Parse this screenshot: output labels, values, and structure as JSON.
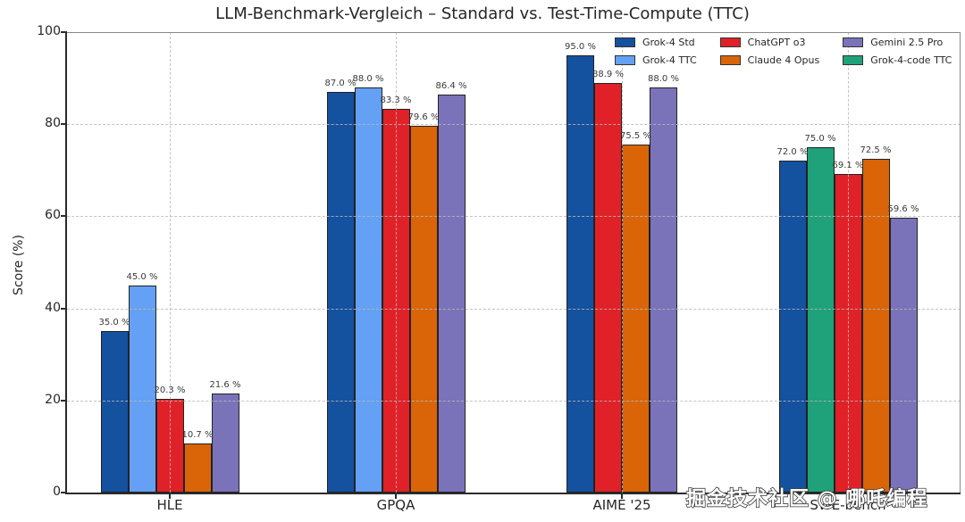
{
  "title": "LLM-Benchmark-Vergleich – Standard vs. Test-Time-Compute (TTC)",
  "ylabel": "Score (%)",
  "watermark": "掘金技术社区 @ 哪吒编程",
  "chart_data": {
    "type": "bar",
    "title": "LLM-Benchmark-Vergleich – Standard vs. Test-Time-Compute (TTC)",
    "xlabel": "",
    "ylabel": "Score (%)",
    "ylim": [
      0,
      100
    ],
    "yticks": [
      0,
      20,
      40,
      60,
      80,
      100
    ],
    "grid": true,
    "grid_style": "dashed",
    "value_label_suffix": " %",
    "bar_edge_color": "#222222",
    "categories": [
      "HLE",
      "GPQA",
      "AIME '25",
      "SWE-bench"
    ],
    "series": [
      {
        "name": "Grok-4 Std",
        "color": "#14519e",
        "values": [
          35.0,
          87.0,
          95.0,
          72.0
        ]
      },
      {
        "name": "Grok-4 TTC",
        "color": "#64a0f3",
        "values": [
          45.0,
          88.0,
          null,
          null
        ]
      },
      {
        "name": "Grok-4-code TTC",
        "color": "#1fa179",
        "values": [
          null,
          null,
          null,
          75.0
        ]
      },
      {
        "name": "ChatGPT o3",
        "color": "#e02128",
        "values": [
          20.3,
          83.3,
          88.9,
          69.1
        ]
      },
      {
        "name": "Claude 4 Opus",
        "color": "#d96508",
        "values": [
          10.7,
          79.6,
          75.5,
          72.5
        ]
      },
      {
        "name": "Gemini 2.5 Pro",
        "color": "#7a73b9",
        "values": [
          21.6,
          86.4,
          88.0,
          59.6
        ]
      }
    ],
    "legend": {
      "position": "upper-right",
      "columns": 3,
      "frame": false,
      "entries": [
        "Grok-4 Std",
        "Grok-4 TTC",
        "ChatGPT o3",
        "Claude 4 Opus",
        "Gemini 2.5 Pro",
        "Grok-4-code TTC"
      ]
    }
  }
}
